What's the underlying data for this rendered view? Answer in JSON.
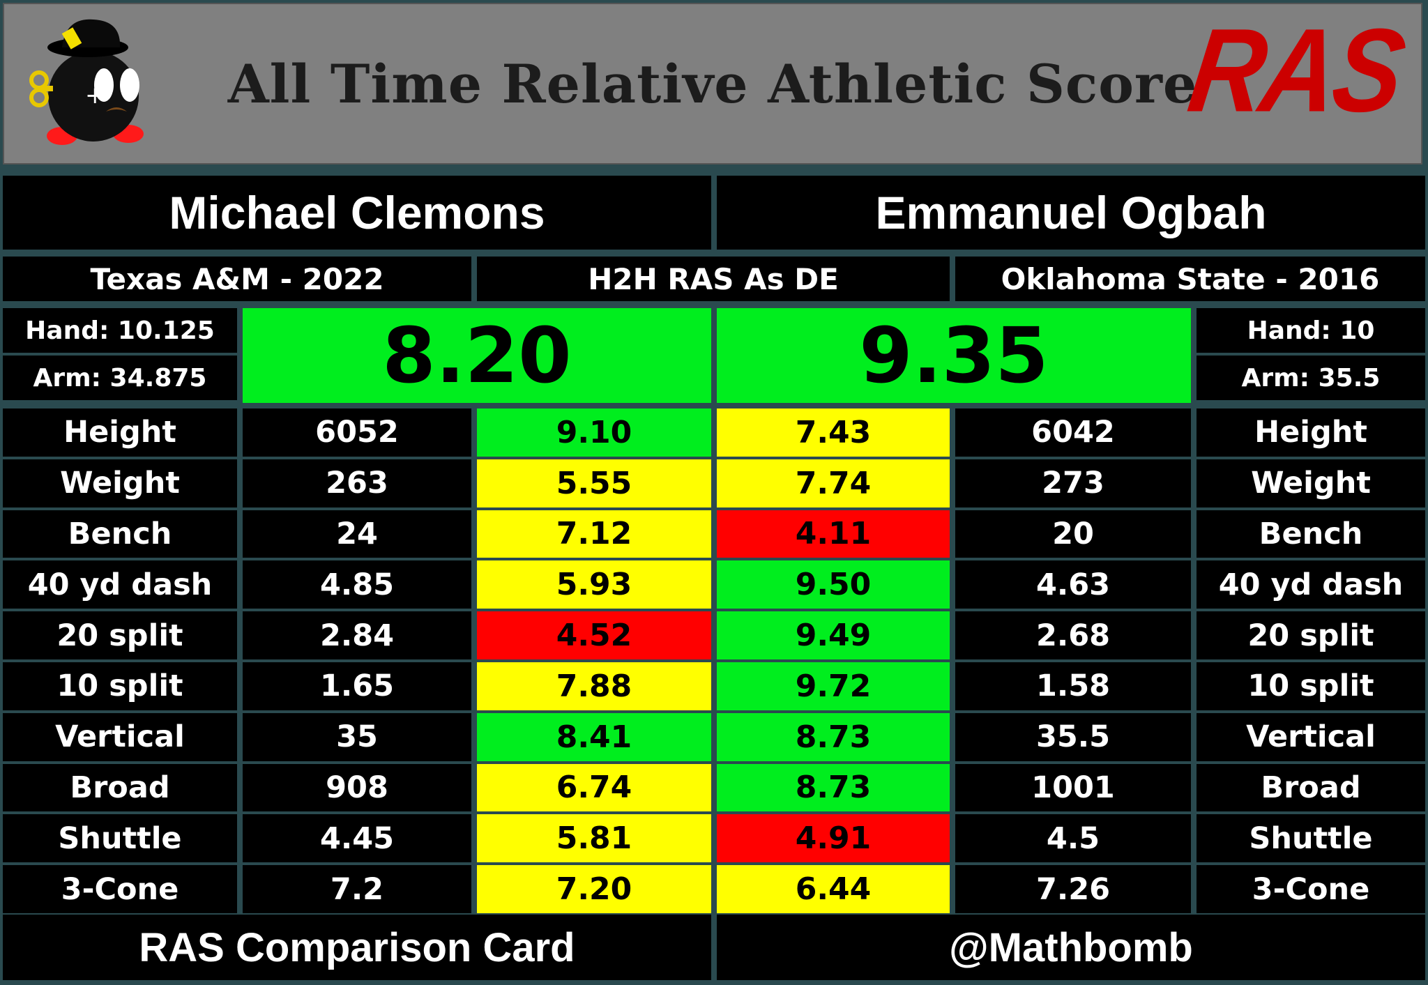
{
  "header": {
    "title": "All Time Relative Athletic Score",
    "logo_text": "RAS"
  },
  "players": {
    "left": {
      "name": "Michael Clemons",
      "school_year": "Texas A&M - 2022",
      "hand": "Hand: 10.125",
      "arm": "Arm: 34.875",
      "ras": "8.20"
    },
    "right": {
      "name": "Emmanuel Ogbah",
      "school_year": "Oklahoma State - 2016",
      "hand": "Hand: 10",
      "arm": "Arm: 35.5",
      "ras": "9.35"
    }
  },
  "comparison_label": "H2H RAS As DE",
  "rows": [
    {
      "metric": "Height",
      "left_value": "6052",
      "left_score": "9.10",
      "left_color": "green",
      "right_score": "7.43",
      "right_color": "yellow",
      "right_value": "6042"
    },
    {
      "metric": "Weight",
      "left_value": "263",
      "left_score": "5.55",
      "left_color": "yellow",
      "right_score": "7.74",
      "right_color": "yellow",
      "right_value": "273"
    },
    {
      "metric": "Bench",
      "left_value": "24",
      "left_score": "7.12",
      "left_color": "yellow",
      "right_score": "4.11",
      "right_color": "red",
      "right_value": "20"
    },
    {
      "metric": "40 yd dash",
      "left_value": "4.85",
      "left_score": "5.93",
      "left_color": "yellow",
      "right_score": "9.50",
      "right_color": "green",
      "right_value": "4.63"
    },
    {
      "metric": "20 split",
      "left_value": "2.84",
      "left_score": "4.52",
      "left_color": "red",
      "right_score": "9.49",
      "right_color": "green",
      "right_value": "2.68"
    },
    {
      "metric": "10 split",
      "left_value": "1.65",
      "left_score": "7.88",
      "left_color": "yellow",
      "right_score": "9.72",
      "right_color": "green",
      "right_value": "1.58"
    },
    {
      "metric": "Vertical",
      "left_value": "35",
      "left_score": "8.41",
      "left_color": "green",
      "right_score": "8.73",
      "right_color": "green",
      "right_value": "35.5"
    },
    {
      "metric": "Broad",
      "left_value": "908",
      "left_score": "6.74",
      "left_color": "yellow",
      "right_score": "8.73",
      "right_color": "green",
      "right_value": "1001"
    },
    {
      "metric": "Shuttle",
      "left_value": "4.45",
      "left_score": "5.81",
      "left_color": "yellow",
      "right_score": "4.91",
      "right_color": "red",
      "right_value": "4.5"
    },
    {
      "metric": "3-Cone",
      "left_value": "7.2",
      "left_score": "7.20",
      "left_color": "yellow",
      "right_score": "6.44",
      "right_color": "yellow",
      "right_value": "7.26"
    }
  ],
  "footer": {
    "left": "RAS Comparison Card",
    "right": "@Mathbomb"
  },
  "colors": {
    "green": "#00ee1e",
    "yellow": "#ffff00",
    "red": "#ff0000",
    "frame": "#2a4a4f"
  }
}
